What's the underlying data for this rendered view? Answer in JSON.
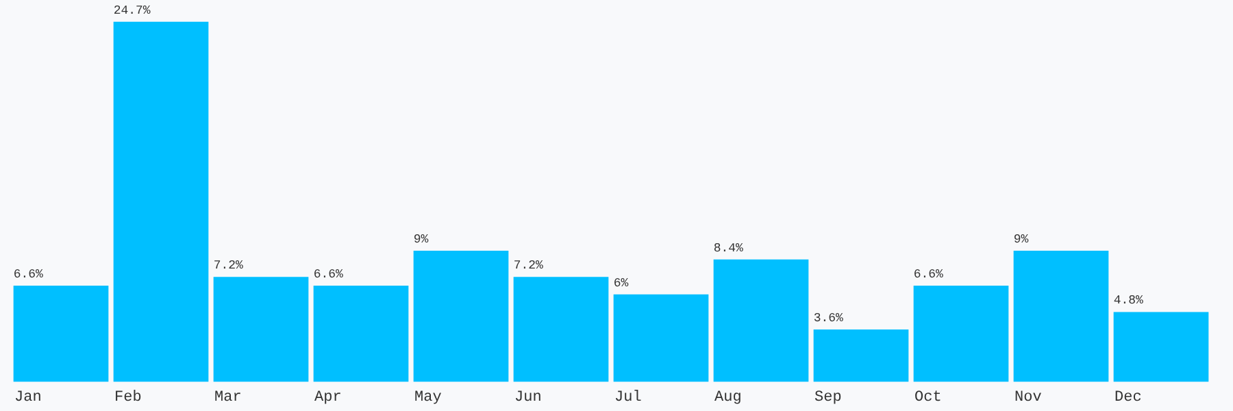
{
  "chart_data": {
    "type": "bar",
    "categories": [
      "Jan",
      "Feb",
      "Mar",
      "Apr",
      "May",
      "Jun",
      "Jul",
      "Aug",
      "Sep",
      "Oct",
      "Nov",
      "Dec"
    ],
    "values": [
      6.6,
      24.7,
      7.2,
      6.6,
      9,
      7.2,
      6,
      8.4,
      3.6,
      6.6,
      9,
      4.8
    ],
    "value_labels": [
      "6.6%",
      "24.7%",
      "7.2%",
      "6.6%",
      "9%",
      "7.2%",
      "6%",
      "8.4%",
      "3.6%",
      "6.6%",
      "9%",
      "4.8%"
    ],
    "color": "#00bfff",
    "grid": false,
    "legend": false
  }
}
